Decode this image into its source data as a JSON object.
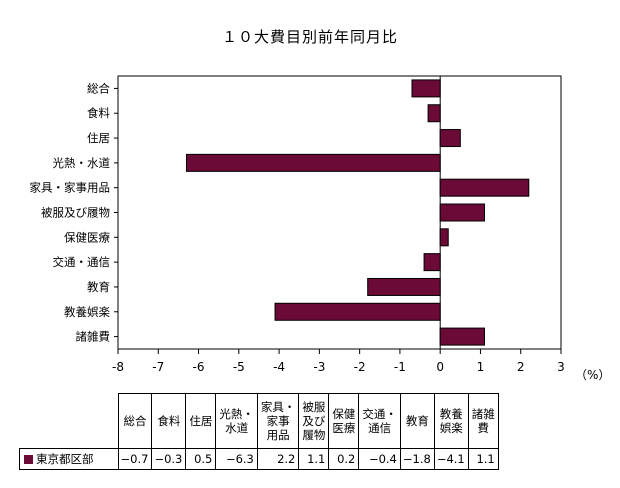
{
  "chart_data": {
    "type": "bar",
    "orientation": "horizontal",
    "title": "１０大費目別前年同月比",
    "unit_label": "（%）",
    "categories": [
      "総合",
      "食料",
      "住居",
      "光熱・水道",
      "家具・家事用品",
      "被服及び履物",
      "保健医療",
      "交通・通信",
      "教育",
      "教養娯楽",
      "諸雑費"
    ],
    "series": [
      {
        "name": "東京都区部",
        "color": "#6b0a36",
        "values": [
          -0.7,
          -0.3,
          0.5,
          -6.3,
          2.2,
          1.1,
          0.2,
          -0.4,
          -1.8,
          -4.1,
          1.1
        ]
      }
    ],
    "xlim": [
      -8,
      3
    ],
    "xticks": [
      "-8",
      "-7",
      "-6",
      "-5",
      "-4",
      "-3",
      "-2",
      "-1",
      "0",
      "1",
      "2",
      "3"
    ],
    "grid": false,
    "legend": "table-below"
  },
  "table": {
    "headers": [
      [
        "総合"
      ],
      [
        "食料"
      ],
      [
        "住居"
      ],
      [
        "光熱・",
        "水道"
      ],
      [
        "家具・",
        "家事",
        "用品"
      ],
      [
        "被服",
        "及び",
        "履物"
      ],
      [
        "保健",
        "医療"
      ],
      [
        "交通・",
        "通信"
      ],
      [
        "教育"
      ],
      [
        "教養",
        "娯楽"
      ],
      [
        "諸雑",
        "費"
      ]
    ],
    "row_label": "東京都区部",
    "values": [
      "−0.7",
      "−0.3",
      "0.5",
      "−6.3",
      "2.2",
      "1.1",
      "0.2",
      "−0.4",
      "−1.8",
      "−4.1",
      "1.1"
    ]
  }
}
